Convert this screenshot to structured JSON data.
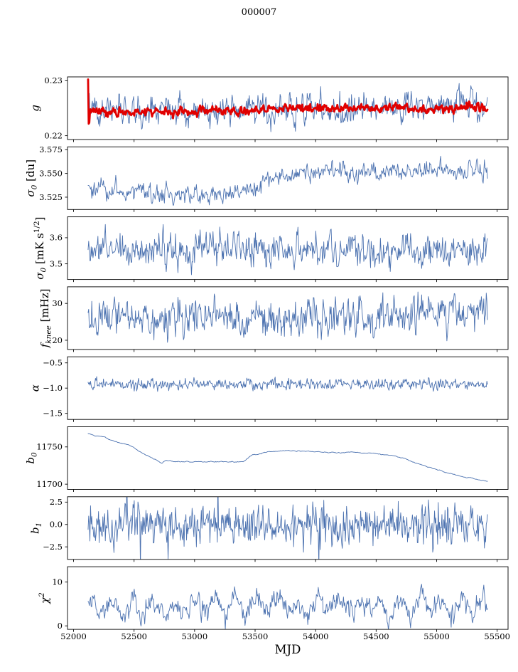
{
  "figure": {
    "title": "000007"
  },
  "chart_data": {
    "type": "line",
    "title": "000007",
    "xlabel": "MJD",
    "xlim": [
      51950,
      55590
    ],
    "x_data_range": [
      52120,
      55420
    ],
    "x_ticks": [
      52000,
      52500,
      53000,
      53500,
      54000,
      54500,
      55000,
      55500
    ],
    "x_tick_labels": [
      "52000",
      "52500",
      "53000",
      "53500",
      "54000",
      "54500",
      "55000",
      "55500"
    ],
    "line_color": "#4c72b0",
    "overlay_color": "#e00000",
    "legend": "none",
    "grid": false,
    "panels": [
      {
        "ylabel": "g",
        "ylim": [
          0.2193,
          0.2307
        ],
        "yticks": [
          {
            "v": 0.22,
            "label": "0.22"
          },
          {
            "v": 0.23,
            "label": "0.23"
          }
        ],
        "series": [
          {
            "name": "g-raw",
            "color": "#4c72b0",
            "width": 0.9,
            "seed": 11,
            "n": 650,
            "sigma": 0.0012,
            "ar": 0.45,
            "anchors": [
              [
                52120,
                0.227
              ],
              [
                52140,
                0.2246
              ],
              [
                52500,
                0.2245
              ],
              [
                53000,
                0.2245
              ],
              [
                53500,
                0.2248
              ],
              [
                54000,
                0.2252
              ],
              [
                54300,
                0.2251
              ],
              [
                54600,
                0.2252
              ],
              [
                55000,
                0.225
              ],
              [
                55300,
                0.2257
              ],
              [
                55420,
                0.2251
              ]
            ]
          },
          {
            "name": "g-smoothed",
            "color": "#e00000",
            "width": 2.8,
            "seed": 12,
            "n": 650,
            "sigma": 0.00035,
            "ar": 0.5,
            "anchors": [
              [
                52120,
                0.23
              ],
              [
                52126,
                0.2205
              ],
              [
                52135,
                0.2245
              ],
              [
                52500,
                0.2243
              ],
              [
                53000,
                0.2244
              ],
              [
                53500,
                0.2246
              ],
              [
                54000,
                0.225
              ],
              [
                54500,
                0.225
              ],
              [
                55000,
                0.2248
              ],
              [
                55250,
                0.2255
              ],
              [
                55330,
                0.2252
              ],
              [
                55420,
                0.2249
              ]
            ]
          }
        ]
      },
      {
        "ylabel": "σ_{0} [du]",
        "ylim": [
          3.512,
          3.578
        ],
        "yticks": [
          {
            "v": 3.525,
            "label": "3.525"
          },
          {
            "v": 3.55,
            "label": "3.550"
          },
          {
            "v": 3.575,
            "label": "3.575"
          }
        ],
        "series": [
          {
            "name": "sigma0-du",
            "color": "#4c72b0",
            "width": 0.9,
            "seed": 21,
            "n": 650,
            "sigma": 0.0045,
            "ar": 0.5,
            "anchors": [
              [
                52120,
                3.532
              ],
              [
                52300,
                3.531
              ],
              [
                52600,
                3.529
              ],
              [
                52900,
                3.526
              ],
              [
                53100,
                3.527
              ],
              [
                53300,
                3.529
              ],
              [
                53450,
                3.534
              ],
              [
                53650,
                3.545
              ],
              [
                53850,
                3.55
              ],
              [
                54100,
                3.552
              ],
              [
                54400,
                3.553
              ],
              [
                54700,
                3.551
              ],
              [
                54900,
                3.555
              ],
              [
                55100,
                3.551
              ],
              [
                55250,
                3.55
              ],
              [
                55420,
                3.556
              ]
            ]
          }
        ]
      },
      {
        "ylabel": "σ_{0} [mK s^{1/2}]",
        "ylim": [
          3.44,
          3.68
        ],
        "yticks": [
          {
            "v": 3.5,
            "label": "3.5"
          },
          {
            "v": 3.6,
            "label": "3.6"
          }
        ],
        "series": [
          {
            "name": "sigma0-mK",
            "color": "#4c72b0",
            "width": 0.9,
            "seed": 31,
            "n": 650,
            "sigma": 0.028,
            "ar": 0.45,
            "anchors": [
              [
                52120,
                3.555
              ],
              [
                53000,
                3.557
              ],
              [
                54000,
                3.556
              ],
              [
                55420,
                3.553
              ]
            ]
          }
        ]
      },
      {
        "ylabel": "f_{knee} [mHz]",
        "ylim": [
          17.5,
          34.5
        ],
        "yticks": [
          {
            "v": 20,
            "label": "20"
          },
          {
            "v": 30,
            "label": "30"
          }
        ],
        "series": [
          {
            "name": "fknee",
            "color": "#4c72b0",
            "width": 0.9,
            "seed": 41,
            "n": 650,
            "sigma": 2.1,
            "ar": 0.3,
            "anchors": [
              [
                52120,
                26.5
              ],
              [
                53500,
                26.3
              ],
              [
                54500,
                26.8
              ],
              [
                55420,
                27.2
              ]
            ]
          }
        ]
      },
      {
        "ylabel": "α",
        "ylim": [
          -1.62,
          -0.38
        ],
        "yticks": [
          {
            "v": -0.5,
            "label": "−0.5"
          },
          {
            "v": -1.0,
            "label": "−1.0"
          },
          {
            "v": -1.5,
            "label": "−1.5"
          }
        ],
        "series": [
          {
            "name": "alpha",
            "color": "#4c72b0",
            "width": 0.9,
            "seed": 51,
            "n": 650,
            "sigma": 0.045,
            "ar": 0.2,
            "anchors": [
              [
                52120,
                -0.93
              ],
              [
                55420,
                -0.93
              ]
            ]
          }
        ]
      },
      {
        "ylabel": "b_{0}",
        "ylim": [
          11693,
          11777
        ],
        "yticks": [
          {
            "v": 11700,
            "label": "11700"
          },
          {
            "v": 11750,
            "label": "11750"
          }
        ],
        "series": [
          {
            "name": "b0",
            "color": "#4c72b0",
            "width": 0.9,
            "seed": 61,
            "n": 650,
            "sigma": 0.5,
            "ar": 0.9,
            "anchors": [
              [
                52120,
                11768
              ],
              [
                52250,
                11763
              ],
              [
                52450,
                11752
              ],
              [
                52600,
                11740
              ],
              [
                52700,
                11731
              ],
              [
                52730,
                11728
              ],
              [
                52760,
                11731
              ],
              [
                53000,
                11730
              ],
              [
                53250,
                11729
              ],
              [
                53400,
                11730
              ],
              [
                53480,
                11740
              ],
              [
                53600,
                11743
              ],
              [
                53750,
                11745
              ],
              [
                53900,
                11744
              ],
              [
                54100,
                11743
              ],
              [
                54300,
                11742
              ],
              [
                54500,
                11741
              ],
              [
                54650,
                11738
              ],
              [
                54750,
                11733
              ],
              [
                54900,
                11725
              ],
              [
                55050,
                11717
              ],
              [
                55200,
                11710
              ],
              [
                55320,
                11706
              ],
              [
                55420,
                11704
              ]
            ]
          }
        ]
      },
      {
        "ylabel": "b_{1}",
        "ylim": [
          -3.9,
          3.1
        ],
        "yticks": [
          {
            "v": -2.5,
            "label": "−2.5"
          },
          {
            "v": 0.0,
            "label": "0.0"
          },
          {
            "v": 2.5,
            "label": "2.5"
          }
        ],
        "series": [
          {
            "name": "b1",
            "color": "#4c72b0",
            "width": 0.9,
            "seed": 71,
            "n": 650,
            "sigma": 1.0,
            "ar": 0.1,
            "spike_prob": 0.012,
            "spike_mult": 2.4,
            "anchors": [
              [
                52120,
                0.0
              ],
              [
                55420,
                0.0
              ]
            ]
          }
        ]
      },
      {
        "ylabel": "χ^{2}",
        "ylim": [
          -0.8,
          13.5
        ],
        "yticks": [
          {
            "v": 0,
            "label": "0"
          },
          {
            "v": 10,
            "label": "10"
          }
        ],
        "series": [
          {
            "name": "chi2",
            "color": "#4c72b0",
            "width": 0.9,
            "seed": 81,
            "n": 650,
            "sigma": 1.1,
            "ar": 0.5,
            "osc": {
              "amp": 1.5,
              "period": 170
            },
            "anchors": [
              [
                52120,
                4.4
              ],
              [
                55420,
                4.6
              ]
            ]
          }
        ]
      }
    ]
  }
}
